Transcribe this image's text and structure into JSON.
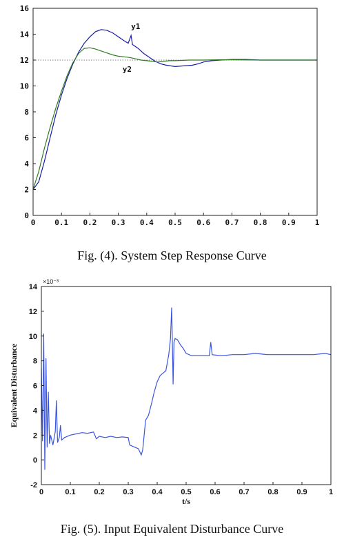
{
  "chart_data": [
    {
      "type": "line",
      "caption": "Fig. (4). System Step Response Curve",
      "xlim": [
        0,
        1
      ],
      "ylim": [
        0,
        16
      ],
      "xticks": [
        "0",
        "0.1",
        "0.2",
        "0.3",
        "0.4",
        "0.5",
        "0.6",
        "0.7",
        "0.8",
        "0.9",
        "1"
      ],
      "yticks": [
        "0",
        "2",
        "4",
        "6",
        "8",
        "10",
        "12",
        "14",
        "16"
      ],
      "reference_line": 12,
      "series": [
        {
          "name": "y1",
          "color": "#1a1aa8",
          "points": [
            [
              0,
              2.0
            ],
            [
              0.02,
              2.6
            ],
            [
              0.04,
              4.2
            ],
            [
              0.06,
              6.0
            ],
            [
              0.08,
              7.8
            ],
            [
              0.1,
              9.3
            ],
            [
              0.12,
              10.6
            ],
            [
              0.14,
              11.7
            ],
            [
              0.16,
              12.6
            ],
            [
              0.18,
              13.3
            ],
            [
              0.2,
              13.8
            ],
            [
              0.22,
              14.2
            ],
            [
              0.24,
              14.35
            ],
            [
              0.26,
              14.3
            ],
            [
              0.28,
              14.1
            ],
            [
              0.3,
              13.8
            ],
            [
              0.32,
              13.5
            ],
            [
              0.335,
              13.3
            ],
            [
              0.345,
              13.9
            ],
            [
              0.35,
              13.2
            ],
            [
              0.37,
              12.9
            ],
            [
              0.39,
              12.5
            ],
            [
              0.41,
              12.2
            ],
            [
              0.43,
              11.9
            ],
            [
              0.45,
              11.7
            ],
            [
              0.47,
              11.6
            ],
            [
              0.5,
              11.5
            ],
            [
              0.53,
              11.55
            ],
            [
              0.56,
              11.6
            ],
            [
              0.58,
              11.7
            ],
            [
              0.6,
              11.85
            ],
            [
              0.63,
              11.95
            ],
            [
              0.66,
              12.0
            ],
            [
              0.7,
              12.05
            ],
            [
              0.75,
              12.05
            ],
            [
              0.8,
              12.0
            ],
            [
              0.85,
              12.0
            ],
            [
              0.9,
              12.0
            ],
            [
              0.95,
              12.0
            ],
            [
              1.0,
              12.0
            ]
          ]
        },
        {
          "name": "y2",
          "color": "#2f7a1e",
          "points": [
            [
              0,
              2.0
            ],
            [
              0.02,
              3.4
            ],
            [
              0.04,
              5.2
            ],
            [
              0.06,
              6.8
            ],
            [
              0.08,
              8.3
            ],
            [
              0.1,
              9.6
            ],
            [
              0.12,
              10.8
            ],
            [
              0.14,
              11.8
            ],
            [
              0.16,
              12.5
            ],
            [
              0.18,
              12.9
            ],
            [
              0.2,
              12.95
            ],
            [
              0.22,
              12.85
            ],
            [
              0.24,
              12.7
            ],
            [
              0.26,
              12.55
            ],
            [
              0.28,
              12.4
            ],
            [
              0.3,
              12.3
            ],
            [
              0.32,
              12.25
            ],
            [
              0.34,
              12.2
            ],
            [
              0.36,
              12.1
            ],
            [
              0.38,
              12.0
            ],
            [
              0.4,
              11.95
            ],
            [
              0.42,
              11.9
            ],
            [
              0.44,
              11.85
            ],
            [
              0.46,
              11.9
            ],
            [
              0.48,
              11.95
            ],
            [
              0.5,
              11.95
            ],
            [
              0.55,
              12.0
            ],
            [
              0.6,
              12.0
            ],
            [
              0.65,
              12.02
            ],
            [
              0.7,
              12.02
            ],
            [
              0.8,
              12.0
            ],
            [
              0.9,
              12.0
            ],
            [
              1.0,
              12.0
            ]
          ]
        }
      ],
      "annotations": [
        {
          "text": "y1",
          "x": 0.345,
          "y": 14.4
        },
        {
          "text": "y2",
          "x": 0.315,
          "y": 11.1
        }
      ]
    },
    {
      "type": "line",
      "caption": "Fig. (5). Input Equivalent Disturbance Curve",
      "xlabel": "t/s",
      "ylabel": "Equivalent Disturbance",
      "y_multiplier": "×10⁻³",
      "xlim": [
        0,
        1
      ],
      "ylim": [
        -2,
        14
      ],
      "xticks": [
        "0",
        "0.1",
        "0.2",
        "0.3",
        "0.4",
        "0.5",
        "0.6",
        "0.7",
        "0.8",
        "0.9",
        "1"
      ],
      "yticks": [
        "-2",
        "0",
        "2",
        "4",
        "6",
        "8",
        "10",
        "12",
        "14"
      ],
      "series": [
        {
          "color": "#3b55e0",
          "points": [
            [
              0,
              7.4
            ],
            [
              0.004,
              1.5
            ],
            [
              0.008,
              10.2
            ],
            [
              0.012,
              -0.8
            ],
            [
              0.016,
              8.2
            ],
            [
              0.02,
              1.0
            ],
            [
              0.024,
              5.5
            ],
            [
              0.028,
              1.3
            ],
            [
              0.032,
              2.0
            ],
            [
              0.04,
              1.2
            ],
            [
              0.048,
              2.3
            ],
            [
              0.052,
              4.8
            ],
            [
              0.056,
              1.4
            ],
            [
              0.062,
              1.8
            ],
            [
              0.066,
              2.8
            ],
            [
              0.07,
              1.6
            ],
            [
              0.08,
              1.8
            ],
            [
              0.1,
              2.0
            ],
            [
              0.12,
              2.1
            ],
            [
              0.14,
              2.2
            ],
            [
              0.16,
              2.15
            ],
            [
              0.18,
              2.25
            ],
            [
              0.19,
              1.7
            ],
            [
              0.2,
              1.9
            ],
            [
              0.22,
              1.8
            ],
            [
              0.24,
              1.9
            ],
            [
              0.26,
              1.8
            ],
            [
              0.28,
              1.85
            ],
            [
              0.3,
              1.8
            ],
            [
              0.305,
              1.2
            ],
            [
              0.32,
              1.05
            ],
            [
              0.335,
              0.9
            ],
            [
              0.345,
              0.4
            ],
            [
              0.35,
              0.8
            ],
            [
              0.355,
              2.0
            ],
            [
              0.36,
              3.2
            ],
            [
              0.37,
              3.6
            ],
            [
              0.38,
              4.5
            ],
            [
              0.39,
              5.5
            ],
            [
              0.4,
              6.3
            ],
            [
              0.41,
              6.8
            ],
            [
              0.42,
              7.0
            ],
            [
              0.43,
              7.2
            ],
            [
              0.44,
              8.5
            ],
            [
              0.446,
              9.8
            ],
            [
              0.45,
              12.3
            ],
            [
              0.452,
              10.2
            ],
            [
              0.455,
              6.1
            ],
            [
              0.458,
              9.5
            ],
            [
              0.462,
              9.8
            ],
            [
              0.47,
              9.7
            ],
            [
              0.48,
              9.3
            ],
            [
              0.49,
              9.0
            ],
            [
              0.5,
              8.6
            ],
            [
              0.52,
              8.4
            ],
            [
              0.55,
              8.4
            ],
            [
              0.58,
              8.4
            ],
            [
              0.585,
              9.5
            ],
            [
              0.59,
              8.5
            ],
            [
              0.62,
              8.4
            ],
            [
              0.66,
              8.5
            ],
            [
              0.7,
              8.5
            ],
            [
              0.74,
              8.6
            ],
            [
              0.78,
              8.5
            ],
            [
              0.82,
              8.5
            ],
            [
              0.86,
              8.5
            ],
            [
              0.9,
              8.5
            ],
            [
              0.94,
              8.5
            ],
            [
              0.98,
              8.6
            ],
            [
              1.0,
              8.5
            ]
          ]
        }
      ]
    }
  ]
}
